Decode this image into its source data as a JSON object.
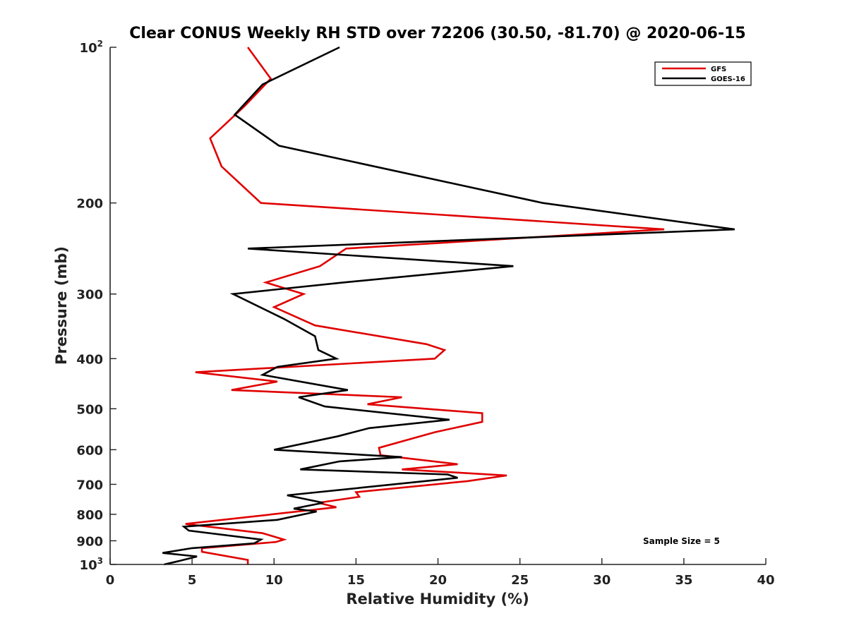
{
  "chart_data": {
    "type": "line",
    "title": "Clear CONUS Weekly RH STD over 72206 (30.50, -81.70) @ 2020-06-15",
    "xlabel": "Relative Humidity (%)",
    "ylabel": "Pressure (mb)",
    "xlim": [
      0,
      40
    ],
    "ylim": [
      100,
      1000
    ],
    "y_scale": "log",
    "y_reversed": true,
    "grid": false,
    "legend_position": "top-right",
    "x_ticks": [
      "0",
      "5",
      "10",
      "15",
      "20",
      "25",
      "30",
      "35",
      "40"
    ],
    "y_ticks": [
      {
        "value": 100,
        "base": "10",
        "exp": "2"
      },
      {
        "value": 200,
        "label": "200"
      },
      {
        "value": 300,
        "label": "300"
      },
      {
        "value": 400,
        "label": "400"
      },
      {
        "value": 500,
        "label": "500"
      },
      {
        "value": 600,
        "label": "600"
      },
      {
        "value": 700,
        "label": "700"
      },
      {
        "value": 800,
        "label": "800"
      },
      {
        "value": 900,
        "label": "900"
      },
      {
        "value": 1000,
        "base": "10",
        "exp": "3"
      }
    ],
    "annotation": "Sample Size = 5",
    "series": [
      {
        "name": "GFS",
        "color": "#e00000",
        "points": [
          [
            8.4,
            100
          ],
          [
            9.8,
            115
          ],
          [
            8.2,
            130
          ],
          [
            6.1,
            150
          ],
          [
            6.8,
            170
          ],
          [
            9.2,
            200
          ],
          [
            33.8,
            225
          ],
          [
            14.4,
            245
          ],
          [
            12.8,
            265
          ],
          [
            9.5,
            285
          ],
          [
            11.8,
            300
          ],
          [
            10.0,
            318
          ],
          [
            12.5,
            345
          ],
          [
            19.3,
            375
          ],
          [
            20.4,
            385
          ],
          [
            19.8,
            400
          ],
          [
            5.2,
            425
          ],
          [
            10.2,
            443
          ],
          [
            7.4,
            460
          ],
          [
            17.8,
            475
          ],
          [
            15.7,
            490
          ],
          [
            22.7,
            510
          ],
          [
            22.7,
            530
          ],
          [
            19.8,
            555
          ],
          [
            16.4,
            595
          ],
          [
            16.5,
            615
          ],
          [
            21.2,
            640
          ],
          [
            17.8,
            655
          ],
          [
            24.2,
            673
          ],
          [
            21.8,
            690
          ],
          [
            15.0,
            725
          ],
          [
            15.2,
            740
          ],
          [
            12.7,
            760
          ],
          [
            13.8,
            775
          ],
          [
            4.6,
            835
          ],
          [
            9.3,
            870
          ],
          [
            10.6,
            895
          ],
          [
            10.1,
            905
          ],
          [
            5.6,
            930
          ],
          [
            5.6,
            945
          ],
          [
            8.4,
            980
          ],
          [
            8.4,
            1000
          ]
        ]
      },
      {
        "name": "GOES-16",
        "color": "#000000",
        "points": [
          [
            14.0,
            100
          ],
          [
            9.3,
            118
          ],
          [
            7.6,
            135
          ],
          [
            10.3,
            155
          ],
          [
            26.4,
            200
          ],
          [
            38.1,
            225
          ],
          [
            8.4,
            245
          ],
          [
            24.6,
            265
          ],
          [
            14.2,
            285
          ],
          [
            7.5,
            300
          ],
          [
            10.6,
            335
          ],
          [
            12.5,
            362
          ],
          [
            12.7,
            385
          ],
          [
            13.8,
            400
          ],
          [
            10.2,
            415
          ],
          [
            9.3,
            430
          ],
          [
            14.5,
            460
          ],
          [
            11.5,
            475
          ],
          [
            13.1,
            495
          ],
          [
            20.7,
            525
          ],
          [
            15.8,
            545
          ],
          [
            13.9,
            565
          ],
          [
            10.0,
            600
          ],
          [
            17.8,
            620
          ],
          [
            14.0,
            632
          ],
          [
            11.6,
            655
          ],
          [
            20.6,
            670
          ],
          [
            21.2,
            680
          ],
          [
            10.8,
            735
          ],
          [
            13.0,
            760
          ],
          [
            11.2,
            780
          ],
          [
            12.6,
            790
          ],
          [
            10.2,
            820
          ],
          [
            4.5,
            845
          ],
          [
            4.8,
            860
          ],
          [
            9.2,
            895
          ],
          [
            8.8,
            910
          ],
          [
            5.0,
            930
          ],
          [
            3.2,
            950
          ],
          [
            5.3,
            965
          ],
          [
            4.2,
            985
          ],
          [
            3.3,
            1000
          ]
        ]
      }
    ]
  }
}
